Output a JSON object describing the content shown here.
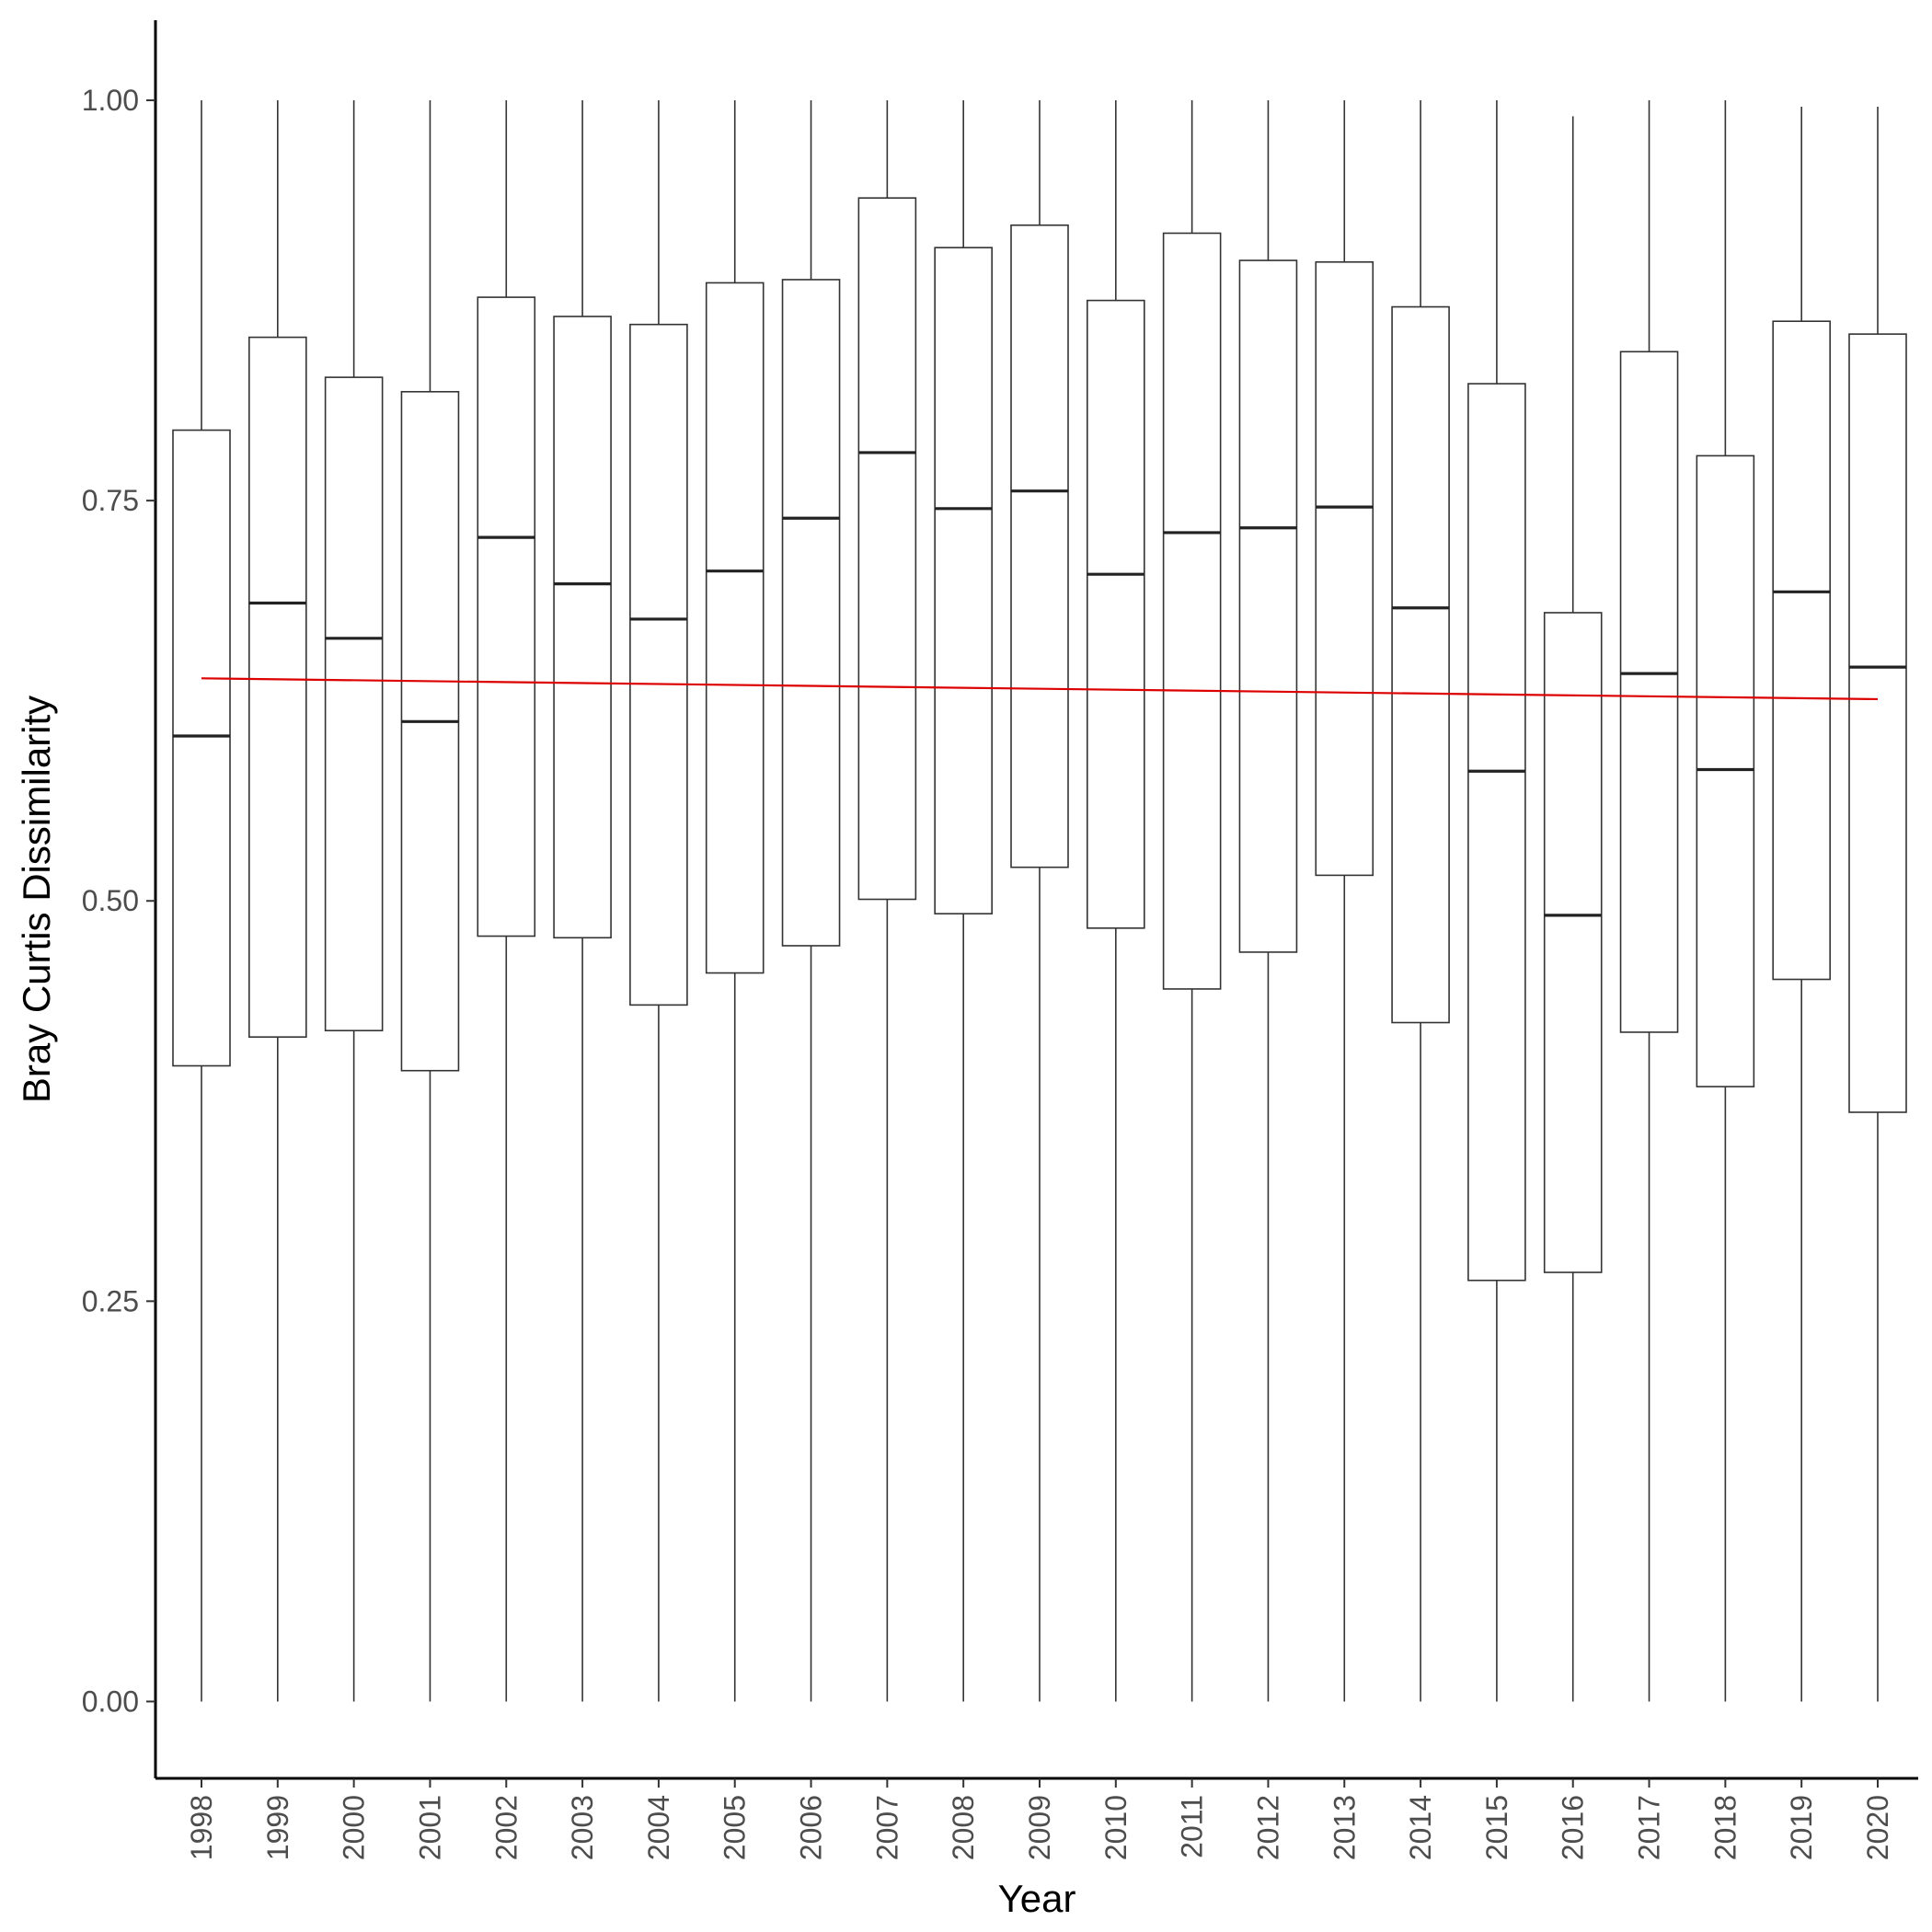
{
  "chart_data": {
    "type": "boxplot",
    "title": "",
    "xlabel": "Year",
    "ylabel": "Bray Curtis Dissimilarity",
    "ylim": [
      -0.048,
      1.05
    ],
    "yticks": [
      "0.00",
      "0.25",
      "0.50",
      "0.75",
      "1.00"
    ],
    "ytick_values": [
      0,
      0.25,
      0.5,
      0.75,
      1.0
    ],
    "grid": false,
    "legend": "none",
    "colors": {
      "box_stroke": "#333333",
      "trend_line": "#dd0000",
      "axis": "#000000"
    },
    "categories": [
      "1998",
      "1999",
      "2000",
      "2001",
      "2002",
      "2003",
      "2004",
      "2005",
      "2006",
      "2007",
      "2008",
      "2009",
      "2010",
      "2011",
      "2012",
      "2013",
      "2014",
      "2015",
      "2016",
      "2017",
      "2018",
      "2019",
      "2020"
    ],
    "boxes": [
      {
        "min": 0.0,
        "q1": 0.397,
        "median": 0.603,
        "q3": 0.794,
        "max": 1.0
      },
      {
        "min": 0.0,
        "q1": 0.415,
        "median": 0.686,
        "q3": 0.852,
        "max": 1.0
      },
      {
        "min": 0.0,
        "q1": 0.419,
        "median": 0.664,
        "q3": 0.827,
        "max": 1.0
      },
      {
        "min": 0.0,
        "q1": 0.394,
        "median": 0.612,
        "q3": 0.818,
        "max": 1.0
      },
      {
        "min": 0.0,
        "q1": 0.478,
        "median": 0.727,
        "q3": 0.877,
        "max": 1.0
      },
      {
        "min": 0.0,
        "q1": 0.477,
        "median": 0.698,
        "q3": 0.865,
        "max": 1.0
      },
      {
        "min": 0.0,
        "q1": 0.435,
        "median": 0.676,
        "q3": 0.86,
        "max": 1.0
      },
      {
        "min": 0.0,
        "q1": 0.455,
        "median": 0.706,
        "q3": 0.886,
        "max": 1.0
      },
      {
        "min": 0.0,
        "q1": 0.472,
        "median": 0.739,
        "q3": 0.888,
        "max": 1.0
      },
      {
        "min": 0.0,
        "q1": 0.501,
        "median": 0.78,
        "q3": 0.939,
        "max": 1.0
      },
      {
        "min": 0.0,
        "q1": 0.492,
        "median": 0.745,
        "q3": 0.908,
        "max": 1.0
      },
      {
        "min": 0.0,
        "q1": 0.521,
        "median": 0.756,
        "q3": 0.922,
        "max": 1.0
      },
      {
        "min": 0.0,
        "q1": 0.483,
        "median": 0.704,
        "q3": 0.875,
        "max": 1.0
      },
      {
        "min": 0.0,
        "q1": 0.445,
        "median": 0.73,
        "q3": 0.917,
        "max": 1.0
      },
      {
        "min": 0.0,
        "q1": 0.468,
        "median": 0.733,
        "q3": 0.9,
        "max": 1.0
      },
      {
        "min": 0.0,
        "q1": 0.516,
        "median": 0.746,
        "q3": 0.899,
        "max": 1.0
      },
      {
        "min": 0.0,
        "q1": 0.424,
        "median": 0.683,
        "q3": 0.871,
        "max": 1.0
      },
      {
        "min": 0.0,
        "q1": 0.263,
        "median": 0.581,
        "q3": 0.823,
        "max": 1.0
      },
      {
        "min": 0.0,
        "q1": 0.268,
        "median": 0.491,
        "q3": 0.68,
        "max": 0.99
      },
      {
        "min": 0.0,
        "q1": 0.418,
        "median": 0.642,
        "q3": 0.843,
        "max": 1.0
      },
      {
        "min": 0.0,
        "q1": 0.384,
        "median": 0.582,
        "q3": 0.778,
        "max": 1.0
      },
      {
        "min": 0.0,
        "q1": 0.451,
        "median": 0.693,
        "q3": 0.862,
        "max": 0.996
      },
      {
        "min": 0.0,
        "q1": 0.368,
        "median": 0.646,
        "q3": 0.854,
        "max": 0.996
      }
    ],
    "trend_line": {
      "x": [
        "1998",
        "2020"
      ],
      "y": [
        0.639,
        0.626
      ]
    }
  }
}
